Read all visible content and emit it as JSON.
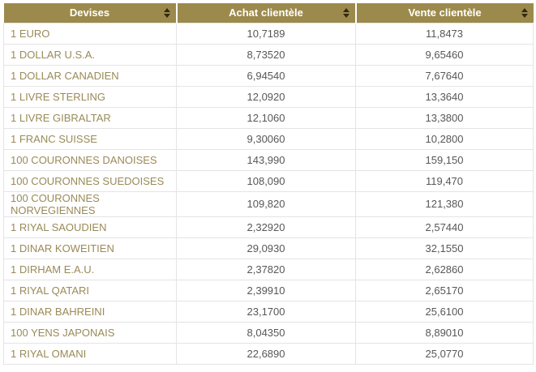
{
  "table": {
    "columns": [
      {
        "label": "Devises",
        "sort_icon": "sort-arrows"
      },
      {
        "label": "Achat clientèle",
        "sort_icon": "sort-arrows"
      },
      {
        "label": "Vente clientèle",
        "sort_icon": "sort-arrows"
      }
    ],
    "rows": [
      {
        "devise": "1 EURO",
        "achat": "10,7189",
        "vente": "11,8473"
      },
      {
        "devise": "1 DOLLAR U.S.A.",
        "achat": "8,73520",
        "vente": "9,65460"
      },
      {
        "devise": "1 DOLLAR CANADIEN",
        "achat": "6,94540",
        "vente": "7,67640"
      },
      {
        "devise": "1 LIVRE STERLING",
        "achat": "12,0920",
        "vente": "13,3640"
      },
      {
        "devise": "1 LIVRE GIBRALTAR",
        "achat": "12,1060",
        "vente": "13,3800"
      },
      {
        "devise": "1 FRANC SUISSE",
        "achat": "9,30060",
        "vente": "10,2800"
      },
      {
        "devise": "100 COURONNES DANOISES",
        "achat": "143,990",
        "vente": "159,150"
      },
      {
        "devise": "100 COURONNES SUEDOISES",
        "achat": "108,090",
        "vente": "119,470"
      },
      {
        "devise": "100 COURONNES NORVEGIENNES",
        "achat": "109,820",
        "vente": "121,380"
      },
      {
        "devise": "1 RIYAL SAOUDIEN",
        "achat": "2,32920",
        "vente": "2,57440"
      },
      {
        "devise": "1 DINAR KOWEITIEN",
        "achat": "29,0930",
        "vente": "32,1550"
      },
      {
        "devise": "1 DIRHAM E.A.U.",
        "achat": "2,37820",
        "vente": "2,62860"
      },
      {
        "devise": "1 RIYAL QATARI",
        "achat": "2,39910",
        "vente": "2,65170"
      },
      {
        "devise": "1 DINAR BAHREINI",
        "achat": "23,1700",
        "vente": "25,6100"
      },
      {
        "devise": "100 YENS JAPONAIS",
        "achat": "8,04350",
        "vente": "8,89010"
      },
      {
        "devise": "1 RIYAL OMANI",
        "achat": "22,6890",
        "vente": "25,0770"
      }
    ]
  },
  "colors": {
    "header_bg": "#9c8a4c",
    "header_text": "#ffffff",
    "sort_arrow": "#33290f",
    "devise_text": "#9a8a58",
    "value_text": "#57575a",
    "row_border": "#e4e4e4",
    "background": "#ffffff"
  }
}
